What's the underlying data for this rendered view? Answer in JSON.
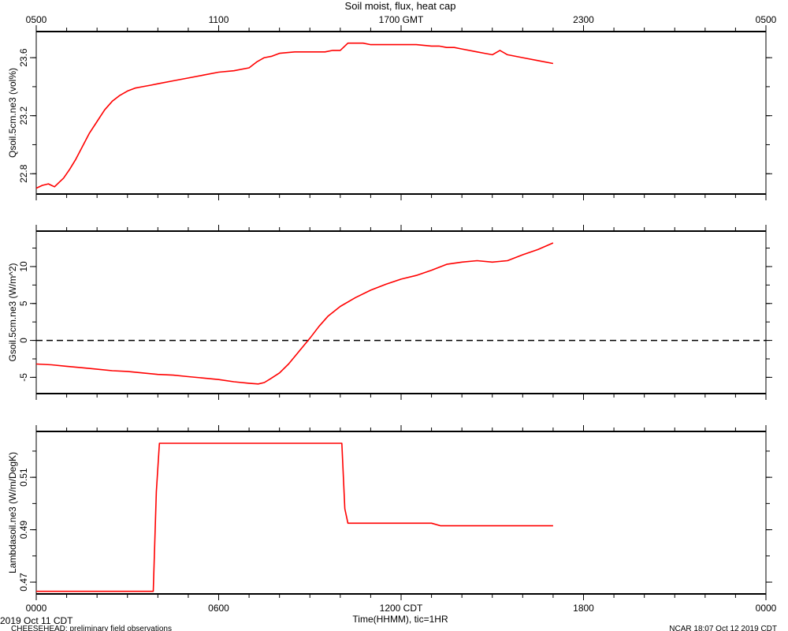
{
  "title": "Soil moist, flux, heat cap",
  "top_axis_ticks": [
    "0500",
    "1100",
    "1700 GMT",
    "2300",
    "0500"
  ],
  "bottom_axis_ticks": [
    "0000",
    "0600",
    "1200 CDT",
    "1800",
    "0000"
  ],
  "xlabel": "Time(HHMM), tic=1HR",
  "footer": {
    "date": "2019 Oct 11 CDT",
    "project": "CHEESEHEAD: preliminary field observations",
    "stamp": "NCAR 18:07 Oct 12 2019 CDT"
  },
  "colors": {
    "series": "#ff0000",
    "axis": "#000000"
  },
  "chart_data": [
    {
      "type": "line",
      "ylabel": "Qsoil.5cm.ne3 (vol%)",
      "ylim": [
        22.66,
        23.78
      ],
      "yticks": [
        22.8,
        23.2,
        23.6
      ],
      "xlim": [
        0,
        24
      ],
      "x_unit": "hours CDT",
      "series": [
        {
          "x": [
            0,
            0.2,
            0.4,
            0.5,
            0.6,
            0.75,
            0.9,
            1.1,
            1.3,
            1.5,
            1.75,
            2.0,
            2.25,
            2.5,
            2.75,
            3.0,
            3.25,
            3.5,
            3.75,
            4.0,
            4.5,
            5.0,
            5.5,
            6.0,
            6.5,
            7.0,
            7.25,
            7.5,
            7.75,
            8.0,
            8.5,
            9.0,
            9.5,
            9.75,
            10.0,
            10.25,
            10.5,
            10.75,
            11.0,
            11.5,
            12.0,
            12.5,
            13.0,
            13.25,
            13.5,
            13.75,
            14.0,
            14.5,
            14.75,
            15.0,
            15.25,
            15.5,
            16.0,
            16.5,
            17.0
          ],
          "values": [
            22.7,
            22.72,
            22.73,
            22.72,
            22.71,
            22.74,
            22.77,
            22.83,
            22.9,
            22.98,
            23.08,
            23.16,
            23.24,
            23.3,
            23.34,
            23.37,
            23.39,
            23.4,
            23.41,
            23.42,
            23.44,
            23.46,
            23.48,
            23.5,
            23.51,
            23.53,
            23.57,
            23.6,
            23.61,
            23.63,
            23.64,
            23.64,
            23.64,
            23.65,
            23.65,
            23.7,
            23.7,
            23.7,
            23.69,
            23.69,
            23.69,
            23.69,
            23.68,
            23.68,
            23.67,
            23.67,
            23.66,
            23.64,
            23.63,
            23.62,
            23.65,
            23.62,
            23.6,
            23.58,
            23.56
          ]
        }
      ]
    },
    {
      "type": "line",
      "ylabel": "Gsoil.5cm.ne3 (W/m^2)",
      "ylim": [
        -7.2,
        14.8
      ],
      "yticks": [
        -5,
        0,
        5,
        10
      ],
      "reference_line": 0,
      "xlim": [
        0,
        24
      ],
      "x_unit": "hours CDT",
      "series": [
        {
          "x": [
            0,
            0.5,
            1.0,
            1.5,
            2.0,
            2.5,
            3.0,
            3.5,
            4.0,
            4.5,
            5.0,
            5.5,
            6.0,
            6.5,
            7.0,
            7.3,
            7.5,
            7.7,
            8.0,
            8.3,
            8.6,
            9.0,
            9.3,
            9.6,
            10.0,
            10.5,
            11.0,
            11.5,
            12.0,
            12.5,
            13.0,
            13.5,
            14.0,
            14.5,
            15.0,
            15.5,
            16.0,
            16.5,
            17.0
          ],
          "values": [
            -3.2,
            -3.3,
            -3.5,
            -3.7,
            -3.9,
            -4.1,
            -4.2,
            -4.4,
            -4.6,
            -4.7,
            -4.9,
            -5.1,
            -5.3,
            -5.6,
            -5.8,
            -5.9,
            -5.7,
            -5.2,
            -4.4,
            -3.2,
            -1.7,
            0.3,
            1.9,
            3.3,
            4.6,
            5.8,
            6.8,
            7.6,
            8.3,
            8.8,
            9.5,
            10.3,
            10.6,
            10.8,
            10.6,
            10.8,
            11.6,
            12.3,
            13.2
          ]
        }
      ]
    },
    {
      "type": "line",
      "ylabel": "Lambdasoil.ne3 (W/m/DegK)",
      "ylim": [
        0.4655,
        0.5275
      ],
      "yticks": [
        0.47,
        0.49,
        0.51
      ],
      "xlim": [
        0,
        24
      ],
      "x_unit": "hours CDT",
      "series": [
        {
          "x": [
            0,
            3.85,
            3.95,
            4.05,
            5.0,
            8.0,
            10.05,
            10.15,
            10.25,
            11.0,
            13.0,
            13.3,
            14.0,
            16.0,
            17.0
          ],
          "values": [
            0.4665,
            0.4665,
            0.5045,
            0.523,
            0.523,
            0.523,
            0.523,
            0.498,
            0.4925,
            0.4925,
            0.4925,
            0.4915,
            0.4915,
            0.4915,
            0.4915
          ]
        }
      ]
    }
  ]
}
